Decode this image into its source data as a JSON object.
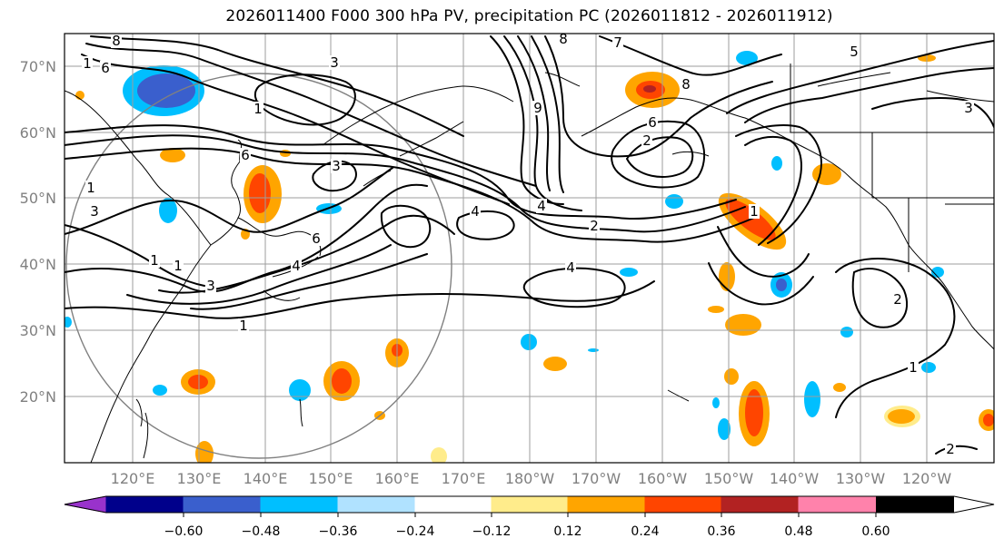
{
  "title": "2026011400 F000 300 hPa PV, precipitation PC (2026011812 - 2026011912)",
  "lat_labels": [
    "70°N",
    "60°N",
    "50°N",
    "40°N",
    "30°N",
    "20°N"
  ],
  "lon_labels": [
    "120°E",
    "130°E",
    "140°E",
    "150°E",
    "160°E",
    "170°E",
    "180°W",
    "170°W",
    "160°W",
    "150°W",
    "140°W",
    "130°W",
    "120°W"
  ],
  "colorbar": {
    "colors": [
      "#9932cc",
      "#00008b",
      "#3a5fcd",
      "#00bfff",
      "#b0e2ff",
      "#ffffff",
      "#ffec8b",
      "#ffa500",
      "#ff4500",
      "#b22222",
      "#ff82ab"
    ],
    "tick_labels": [
      "−0.60",
      "−0.48",
      "−0.36",
      "−0.24",
      "−0.12",
      "0.12",
      "0.24",
      "0.36",
      "0.48",
      "0.60"
    ]
  },
  "contour_labels": [
    {
      "text": "8"
    },
    {
      "text": "6"
    },
    {
      "text": "1"
    },
    {
      "text": "3"
    },
    {
      "text": "8"
    },
    {
      "text": "7"
    },
    {
      "text": "5"
    },
    {
      "text": "3"
    },
    {
      "text": "1"
    },
    {
      "text": "3"
    },
    {
      "text": "6"
    },
    {
      "text": "9"
    },
    {
      "text": "8"
    },
    {
      "text": "6"
    },
    {
      "text": "2"
    },
    {
      "text": "1"
    },
    {
      "text": "3"
    },
    {
      "text": "4"
    },
    {
      "text": "2"
    },
    {
      "text": "4"
    },
    {
      "text": "1"
    },
    {
      "text": "4"
    },
    {
      "text": "6"
    },
    {
      "text": "4"
    },
    {
      "text": "1"
    },
    {
      "text": "3"
    },
    {
      "text": "2"
    },
    {
      "text": "1"
    },
    {
      "text": "1"
    },
    {
      "text": "1"
    },
    {
      "text": "2"
    }
  ]
}
